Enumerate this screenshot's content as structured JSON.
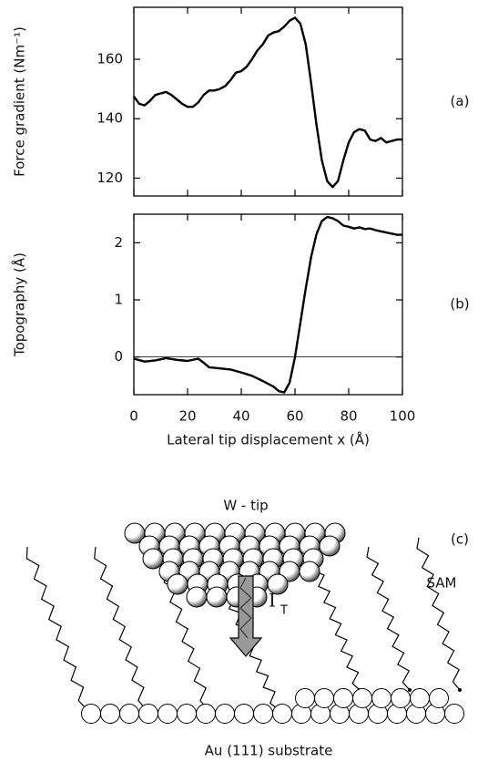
{
  "chart_data": [
    {
      "type": "line",
      "y_label": "Force gradient (Nm⁻¹)",
      "annotation": "(a)",
      "color": "#000000",
      "x": [
        0,
        2,
        4,
        6,
        8,
        10,
        12,
        14,
        16,
        18,
        20,
        22,
        24,
        26,
        28,
        30,
        32,
        34,
        36,
        38,
        40,
        42,
        44,
        46,
        48,
        50,
        52,
        54,
        56,
        58,
        60,
        62,
        64,
        66,
        68,
        70,
        72,
        74,
        76,
        78,
        80,
        82,
        84,
        86,
        88,
        90,
        92,
        94,
        96,
        98,
        100
      ],
      "values": [
        147.5,
        145,
        144.5,
        146,
        148,
        148.5,
        149,
        148,
        146.5,
        145,
        144,
        144,
        145.5,
        148,
        149.5,
        149.5,
        150,
        151,
        153,
        155.5,
        156,
        157.5,
        160,
        163,
        165,
        168,
        169,
        169.5,
        171,
        173,
        174,
        172,
        165,
        152,
        138,
        126,
        119,
        117,
        119,
        126,
        132,
        135.5,
        136.5,
        136,
        133,
        132.5,
        133.5,
        132,
        132.5,
        133,
        133
      ],
      "xlim": [
        0,
        100
      ],
      "xticks": [
        0,
        20,
        40,
        60,
        80,
        100
      ],
      "ylim": [
        114,
        177.5
      ],
      "yticks": [
        120,
        140,
        160
      ]
    },
    {
      "type": "line",
      "y_label": "Topography (Å)",
      "annotation": "(b)",
      "x_label": "Lateral tip displacement x (Å)",
      "color": "#000000",
      "zero_line": true,
      "x": [
        0,
        4,
        8,
        12,
        16,
        20,
        24,
        26,
        28,
        32,
        36,
        40,
        44,
        48,
        52,
        54,
        56,
        58,
        60,
        62,
        64,
        66,
        68,
        70,
        72,
        74,
        76,
        78,
        80,
        82,
        84,
        86,
        88,
        90,
        92,
        94,
        96,
        98,
        100
      ],
      "values": [
        -0.03,
        -0.08,
        -0.06,
        -0.02,
        -0.05,
        -0.07,
        -0.03,
        -0.1,
        -0.18,
        -0.2,
        -0.22,
        -0.27,
        -0.33,
        -0.42,
        -0.52,
        -0.6,
        -0.62,
        -0.45,
        0.0,
        0.6,
        1.2,
        1.75,
        2.15,
        2.38,
        2.45,
        2.43,
        2.38,
        2.3,
        2.28,
        2.25,
        2.27,
        2.24,
        2.25,
        2.22,
        2.2,
        2.18,
        2.16,
        2.14,
        2.14
      ],
      "xlim": [
        0,
        100
      ],
      "xticks": [
        0,
        20,
        40,
        60,
        80,
        100
      ],
      "ylim": [
        -0.66,
        2.5
      ],
      "yticks": [
        0,
        1,
        2
      ]
    }
  ],
  "diagram": {
    "tip_label": "W - tip",
    "panel_label": "(c)",
    "sam_label": "SAM",
    "current_label": "I",
    "current_subscript": "T",
    "substrate_label": "Au (111) substrate"
  }
}
